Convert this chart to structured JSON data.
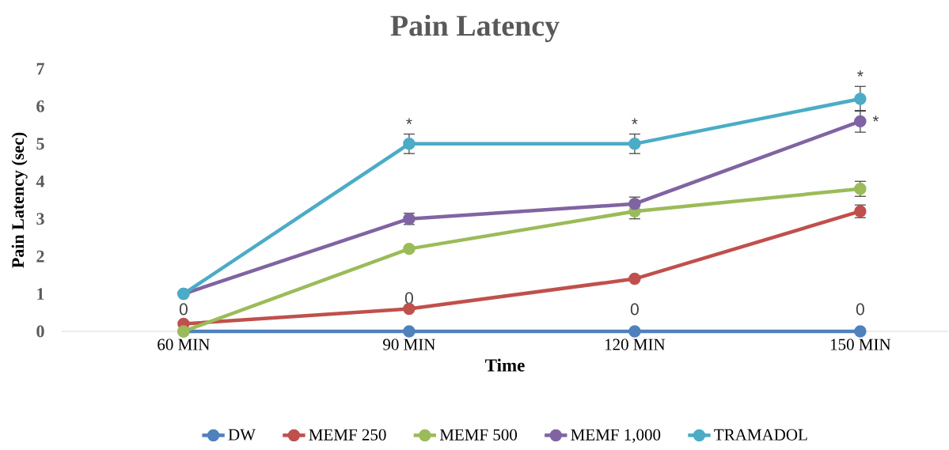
{
  "chart_data": {
    "type": "line",
    "title": "Pain Latency",
    "xlabel": "Time",
    "ylabel": "Pain Latency (sec)",
    "categories": [
      "60 MIN",
      "90 MIN",
      "120 MIN",
      "150 MIN"
    ],
    "ylim": [
      0,
      7
    ],
    "yticks": [
      0,
      1,
      2,
      3,
      4,
      5,
      6,
      7
    ],
    "legend": "bottom",
    "marker": "circle",
    "line_style": "solid",
    "series": [
      {
        "name": "DW",
        "color": "#4f81bd",
        "values": [
          0,
          0,
          0,
          0
        ],
        "value_labels": [
          "0",
          "0",
          "0",
          "0"
        ]
      },
      {
        "name": "MEMF 250",
        "color": "#c0504d",
        "values": [
          0.2,
          0.6,
          1.4,
          3.2
        ],
        "errors": [
          null,
          null,
          null,
          0.17
        ]
      },
      {
        "name": "MEMF 500",
        "color": "#9bbb59",
        "values": [
          0,
          2.2,
          3.2,
          3.8
        ],
        "errors": [
          null,
          null,
          0.2,
          0.2
        ]
      },
      {
        "name": "MEMF 1,000",
        "color": "#8064a2",
        "values": [
          1,
          3,
          3.4,
          5.6
        ],
        "errors": [
          null,
          0.15,
          0.18,
          0.29
        ]
      },
      {
        "name": "TRAMADOL",
        "color": "#4bacc6",
        "values": [
          1,
          5,
          5,
          6.2
        ],
        "errors": [
          null,
          0.26,
          0.26,
          0.33
        ]
      }
    ],
    "annotations": [
      {
        "text": "*",
        "x": "90 MIN",
        "y": 5.26
      },
      {
        "text": "*",
        "x": "120 MIN",
        "y": 5.26
      },
      {
        "text": "*",
        "x": "150 MIN",
        "y": 6.53
      },
      {
        "text": "*",
        "x": "150 MIN",
        "y": 5.6
      }
    ]
  }
}
